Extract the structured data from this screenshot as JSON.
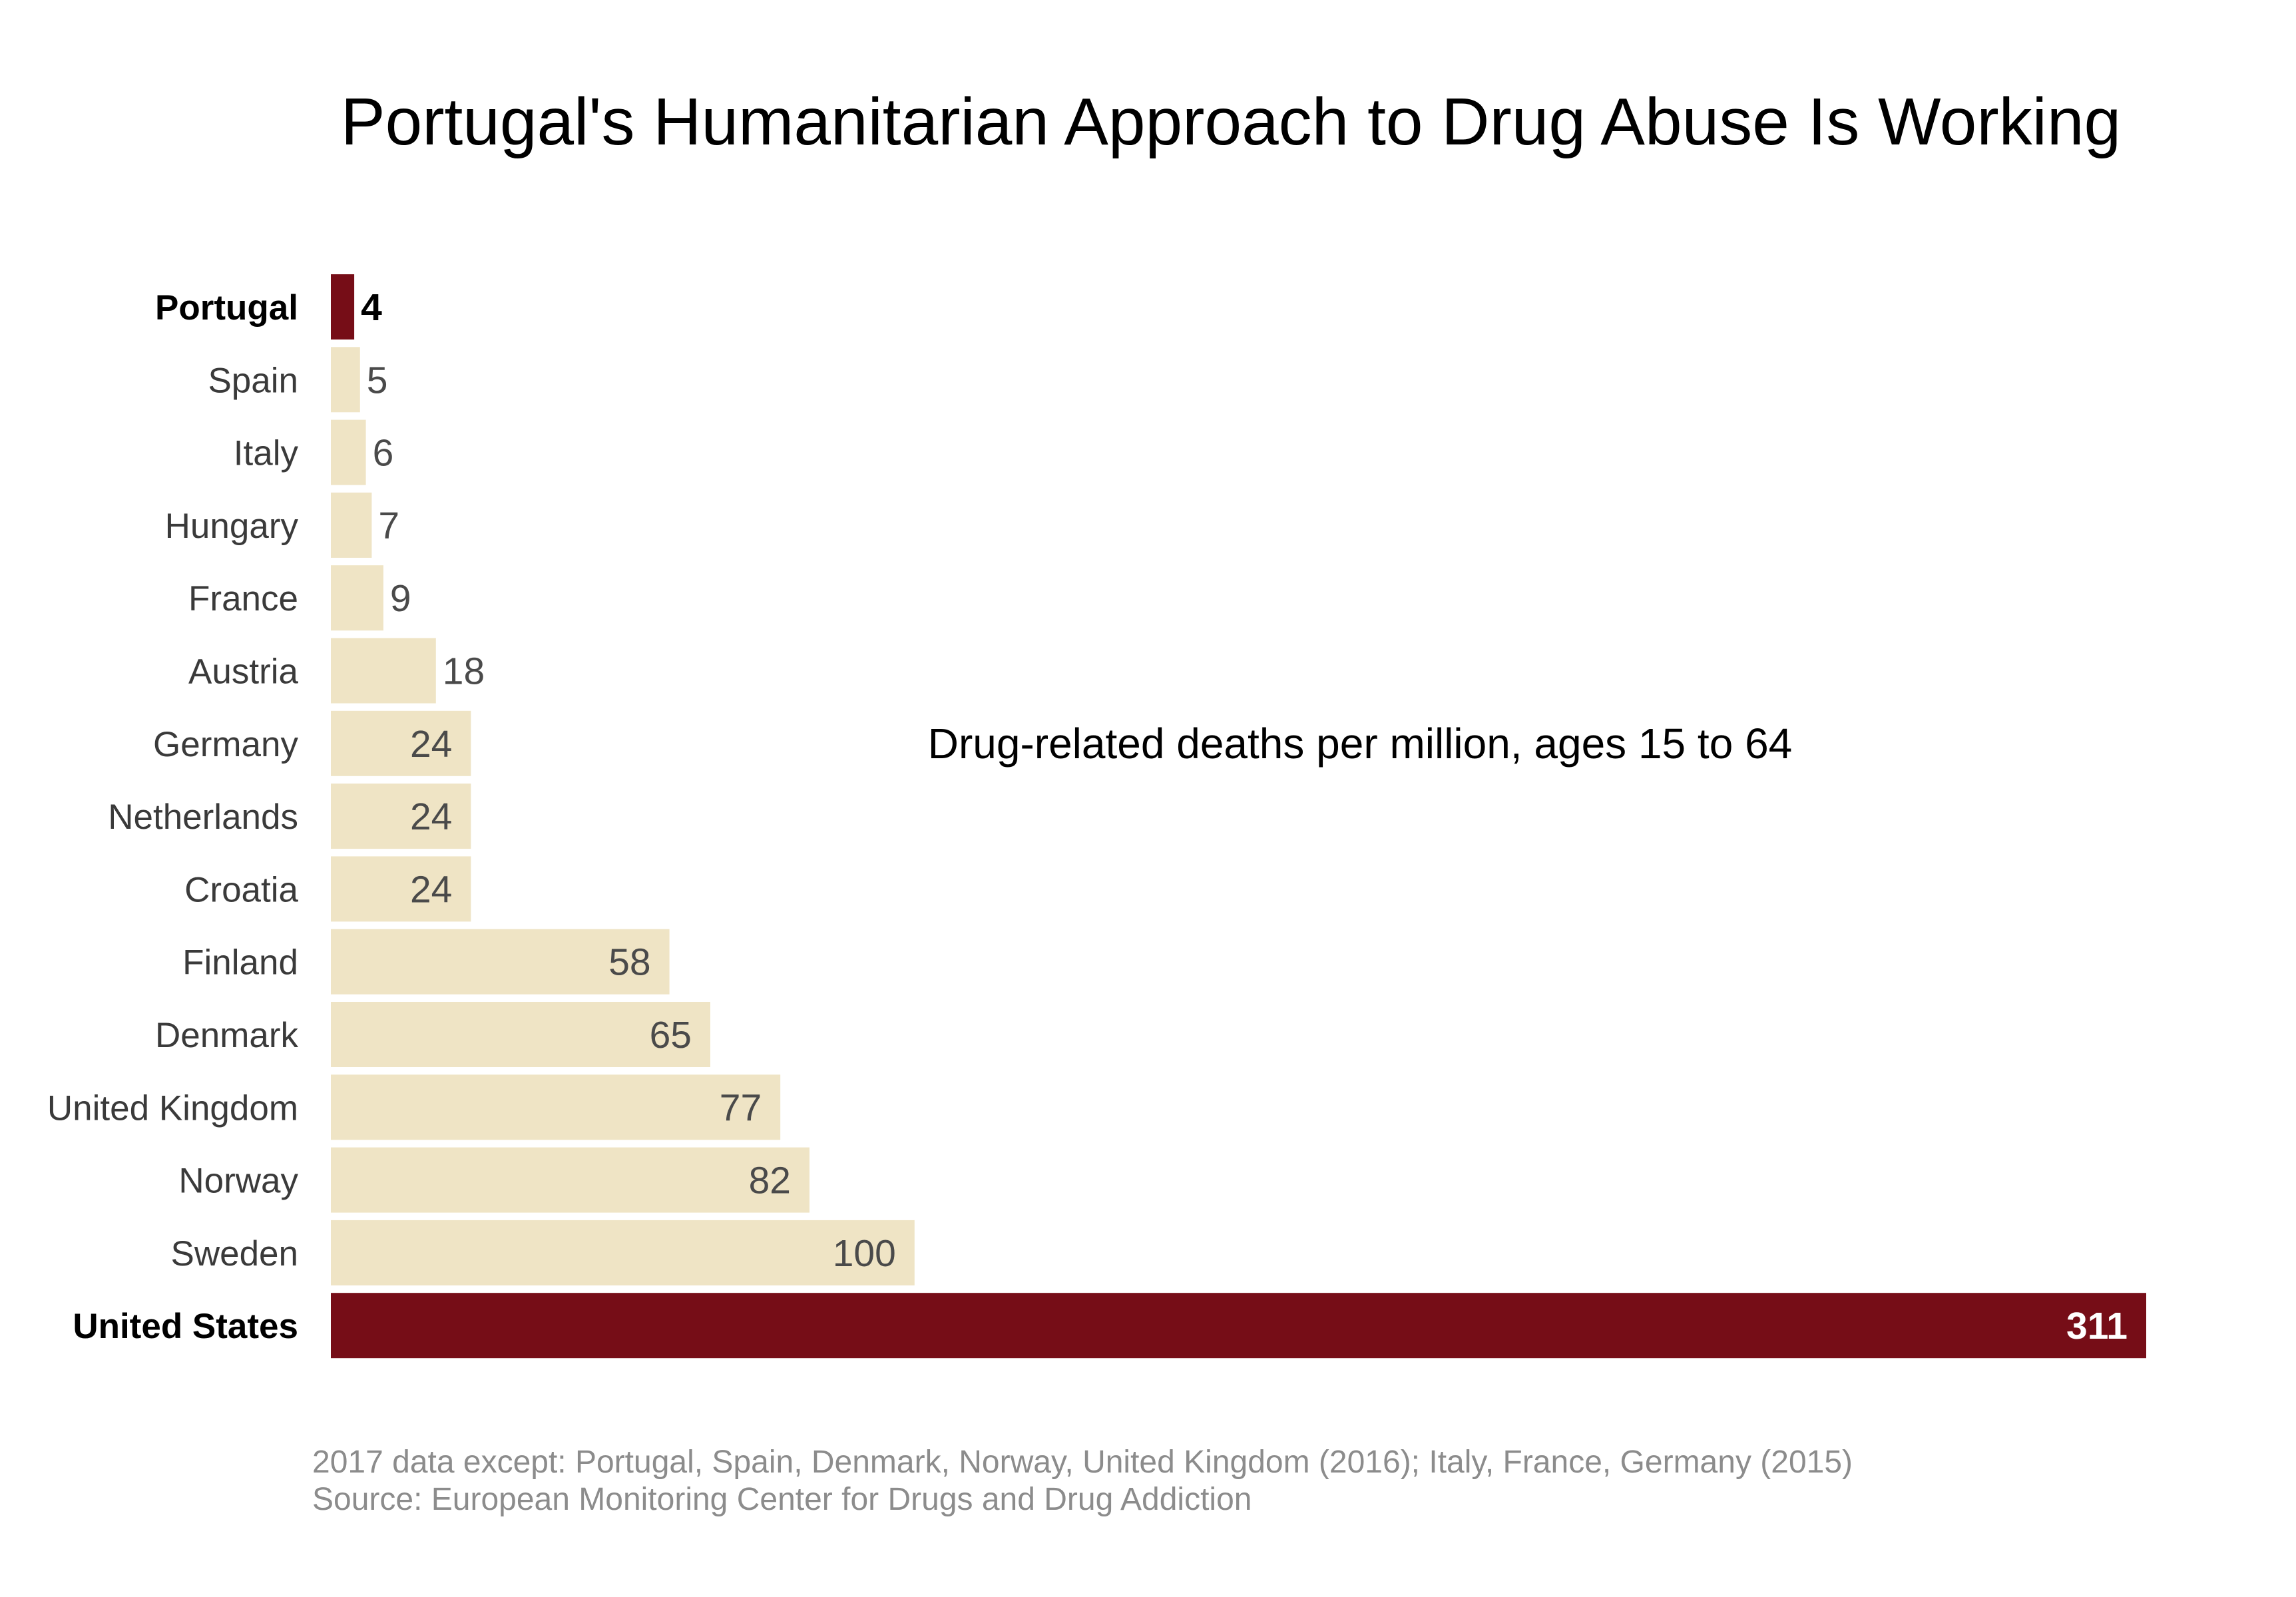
{
  "chart_data": {
    "type": "bar",
    "orientation": "horizontal",
    "title": "Portugal's Humanitarian Approach to Drug Abuse Is Working",
    "subtitle": "Drug-related deaths per million, ages 15 to 64",
    "categories": [
      "Portugal",
      "Spain",
      "Italy",
      "Hungary",
      "France",
      "Austria",
      "Germany",
      "Netherlands",
      "Croatia",
      "Finland",
      "Denmark",
      "United Kingdom",
      "Norway",
      "Sweden",
      "United States"
    ],
    "values": [
      4,
      5,
      6,
      7,
      9,
      18,
      24,
      24,
      24,
      58,
      65,
      77,
      82,
      100,
      311
    ],
    "highlighted": [
      "Portugal",
      "United States"
    ],
    "xlim": [
      0,
      311
    ],
    "grid": false,
    "legend": "none",
    "notes": [
      "2017 data except: Portugal, Spain, Denmark, Norway, United Kingdom (2016); Italy, France, Germany (2015)",
      "Source: European Monitoring Center for Drugs and Drug Addiction"
    ],
    "colors": {
      "highlight": "#760d17",
      "default": "#efe4c5",
      "highlight_value_small": "#000000",
      "highlight_value_large": "#ffffff",
      "value_text": "#4a4a4a",
      "label_text": "#3a3a3a",
      "note_text": "#8c8c8c"
    }
  }
}
